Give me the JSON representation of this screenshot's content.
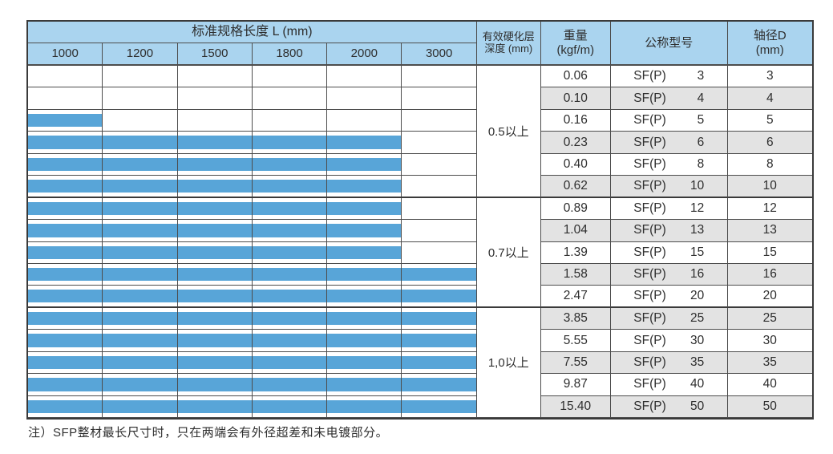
{
  "header": {
    "length_group": "标准规格长度 L (mm)",
    "lengths": [
      "1000",
      "1200",
      "1500",
      "1800",
      "2000",
      "3000"
    ],
    "hardness_line1": "有效硬化层",
    "hardness_line2": "深度 (mm)",
    "weight_line1": "重量",
    "weight_line2": "(kgf/m)",
    "model": "公称型号",
    "diameter_line1": "轴径D",
    "diameter_line2": "(mm)"
  },
  "sections": [
    {
      "depth_label": "0.5以上",
      "row_count": 6
    },
    {
      "depth_label": "0.7以上",
      "row_count": 5
    },
    {
      "depth_label": "1,0以上",
      "row_count": 5
    }
  ],
  "rows": [
    {
      "weight": "0.06",
      "model_prefix": "SF(P)",
      "model_num": "3",
      "diameter": "3",
      "available_lengths": []
    },
    {
      "weight": "0.10",
      "model_prefix": "SF(P)",
      "model_num": "4",
      "diameter": "4",
      "available_lengths": []
    },
    {
      "weight": "0.16",
      "model_prefix": "SF(P)",
      "model_num": "5",
      "diameter": "5",
      "available_lengths": [
        "1000"
      ]
    },
    {
      "weight": "0.23",
      "model_prefix": "SF(P)",
      "model_num": "6",
      "diameter": "6",
      "available_lengths": [
        "1000",
        "1200",
        "1500",
        "1800",
        "2000"
      ]
    },
    {
      "weight": "0.40",
      "model_prefix": "SF(P)",
      "model_num": "8",
      "diameter": "8",
      "available_lengths": [
        "1000",
        "1200",
        "1500",
        "1800",
        "2000"
      ]
    },
    {
      "weight": "0.62",
      "model_prefix": "SF(P)",
      "model_num": "10",
      "diameter": "10",
      "available_lengths": [
        "1000",
        "1200",
        "1500",
        "1800",
        "2000"
      ]
    },
    {
      "weight": "0.89",
      "model_prefix": "SF(P)",
      "model_num": "12",
      "diameter": "12",
      "available_lengths": [
        "1000",
        "1200",
        "1500",
        "1800",
        "2000"
      ]
    },
    {
      "weight": "1.04",
      "model_prefix": "SF(P)",
      "model_num": "13",
      "diameter": "13",
      "available_lengths": [
        "1000",
        "1200",
        "1500",
        "1800",
        "2000"
      ]
    },
    {
      "weight": "1.39",
      "model_prefix": "SF(P)",
      "model_num": "15",
      "diameter": "15",
      "available_lengths": [
        "1000",
        "1200",
        "1500",
        "1800",
        "2000"
      ]
    },
    {
      "weight": "1.58",
      "model_prefix": "SF(P)",
      "model_num": "16",
      "diameter": "16",
      "available_lengths": [
        "1000",
        "1200",
        "1500",
        "1800",
        "2000",
        "3000"
      ]
    },
    {
      "weight": "2.47",
      "model_prefix": "SF(P)",
      "model_num": "20",
      "diameter": "20",
      "available_lengths": [
        "1000",
        "1200",
        "1500",
        "1800",
        "2000",
        "3000"
      ]
    },
    {
      "weight": "3.85",
      "model_prefix": "SF(P)",
      "model_num": "25",
      "diameter": "25",
      "available_lengths": [
        "1000",
        "1200",
        "1500",
        "1800",
        "2000",
        "3000"
      ]
    },
    {
      "weight": "5.55",
      "model_prefix": "SF(P)",
      "model_num": "30",
      "diameter": "30",
      "available_lengths": [
        "1000",
        "1200",
        "1500",
        "1800",
        "2000",
        "3000"
      ]
    },
    {
      "weight": "7.55",
      "model_prefix": "SF(P)",
      "model_num": "35",
      "diameter": "35",
      "available_lengths": [
        "1000",
        "1200",
        "1500",
        "1800",
        "2000",
        "3000"
      ]
    },
    {
      "weight": "9.87",
      "model_prefix": "SF(P)",
      "model_num": "40",
      "diameter": "40",
      "available_lengths": [
        "1000",
        "1200",
        "1500",
        "1800",
        "2000",
        "3000"
      ]
    },
    {
      "weight": "15.40",
      "model_prefix": "SF(P)",
      "model_num": "50",
      "diameter": "50",
      "available_lengths": [
        "1000",
        "1200",
        "1500",
        "1800",
        "2000",
        "3000"
      ]
    }
  ],
  "note": "注）SFP整材最长尺寸时，只在两端会有外径超差和未电镀部分。",
  "colors": {
    "header_blue": "#aad4ef",
    "bar_blue": "#58a5d8",
    "alt_row_gray": "#e3e3e3",
    "grid_line": "#4d4d4d"
  }
}
